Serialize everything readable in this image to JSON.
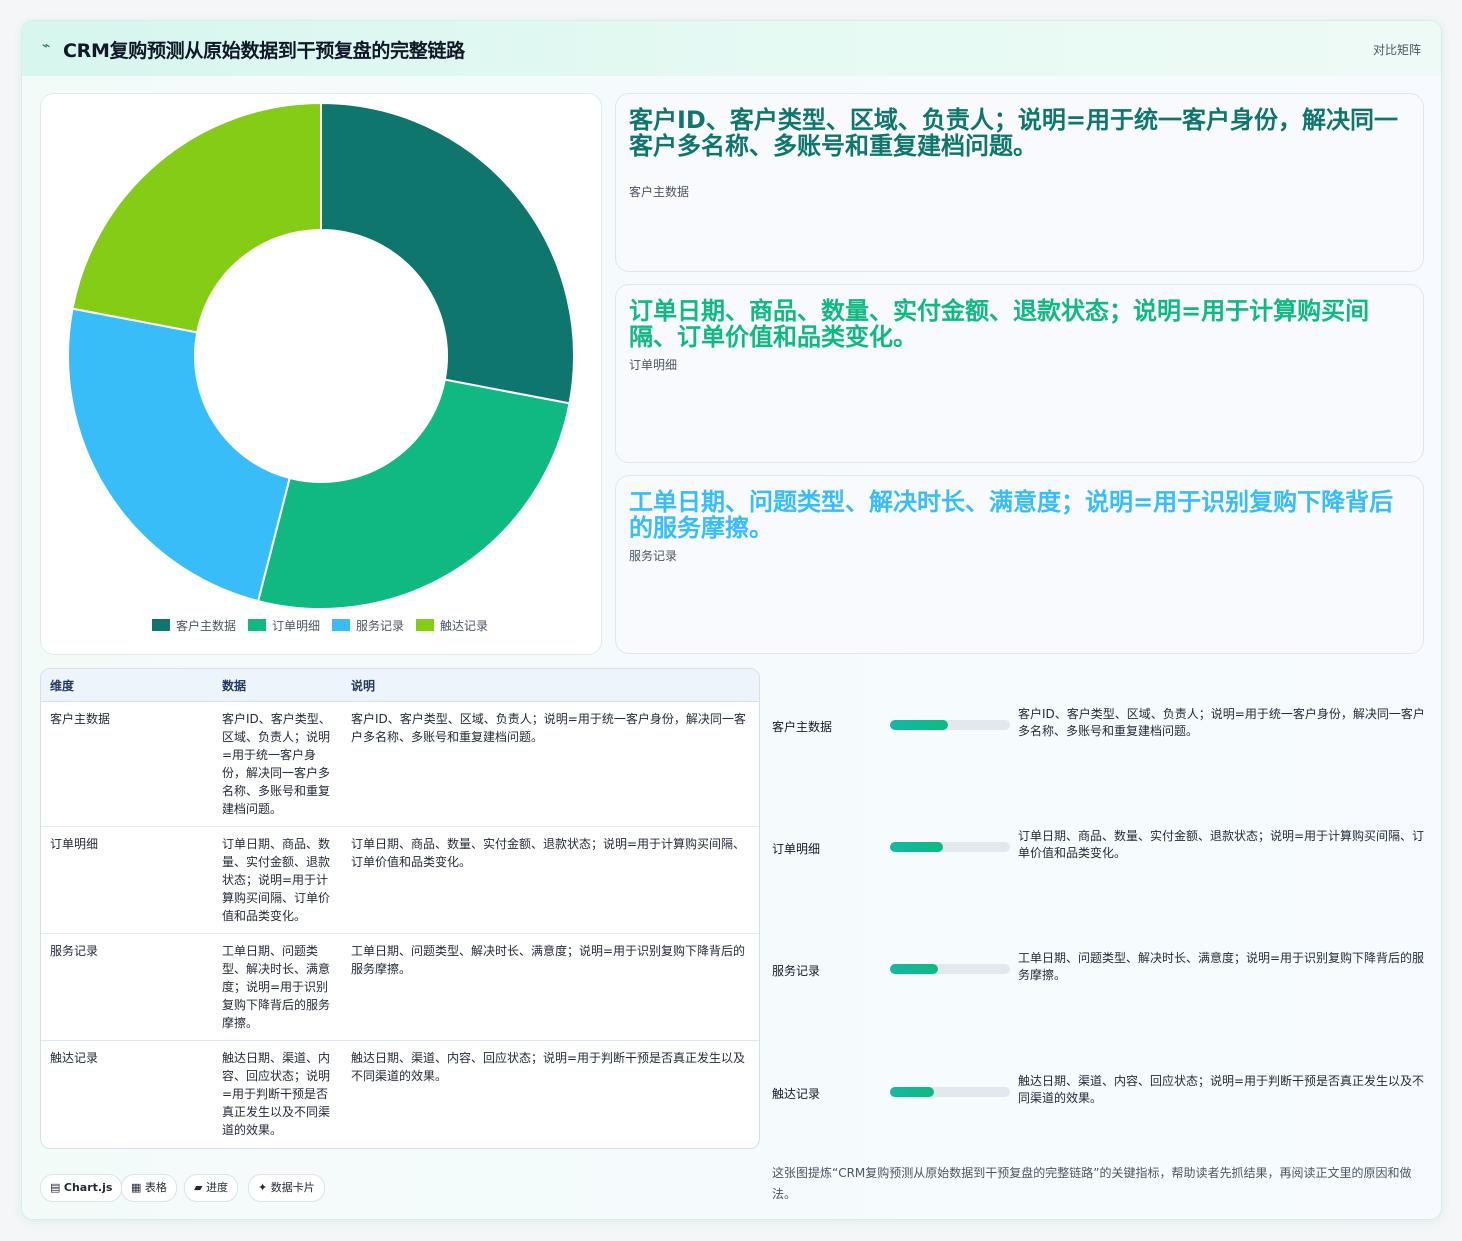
{
  "header": {
    "logo_icon": "⌁",
    "title": "CRM复购预测从原始数据到干预复盘的完整链路",
    "badge": "对比矩阵"
  },
  "colors": {
    "teal_dark": "#0f766e",
    "green": "#10b981",
    "sky": "#38bdf8",
    "lime": "#84cc16"
  },
  "chart_data": {
    "type": "pie",
    "donut": true,
    "categories": [
      "客户主数据",
      "订单明细",
      "服务记录",
      "触达记录"
    ],
    "values": [
      28,
      26,
      24,
      22
    ],
    "colors": [
      "#0f766e",
      "#10b981",
      "#38bdf8",
      "#84cc16"
    ],
    "legend_position": "bottom"
  },
  "cards": [
    {
      "value": "客户ID、客户类型、区域、负责人；说明=用于统一客户身份，解决同一客户多名称、多账号和重复建档问题。",
      "label": "客户主数据",
      "color": "#0f766e"
    },
    {
      "value": "订单日期、商品、数量、实付金额、退款状态；说明=用于计算购买间隔、订单价值和品类变化。",
      "label": "订单明细",
      "color": "#10b981"
    },
    {
      "value": "工单日期、问题类型、解决时长、满意度；说明=用于识别复购下降背后的服务摩擦。",
      "label": "服务记录",
      "color": "#38bdf8"
    }
  ],
  "table": {
    "headers": [
      "维度",
      "数据",
      "说明"
    ],
    "rows": [
      {
        "dim": "客户主数据",
        "data": "客户ID、客户类型、区域、负责人；说明=用于统一客户身份，解决同一客户多名称、多账号和重复建档问题。",
        "desc": "客户ID、客户类型、区域、负责人；说明=用于统一客户身份，解决同一客户多名称、多账号和重复建档问题。"
      },
      {
        "dim": "订单明细",
        "data": "订单日期、商品、数量、实付金额、退款状态；说明=用于计算购买间隔、订单价值和品类变化。",
        "desc": "订单日期、商品、数量、实付金额、退款状态；说明=用于计算购买间隔、订单价值和品类变化。"
      },
      {
        "dim": "服务记录",
        "data": "工单日期、问题类型、解决时长、满意度；说明=用于识别复购下降背后的服务摩擦。",
        "desc": "工单日期、问题类型、解决时长、满意度；说明=用于识别复购下降背后的服务摩擦。"
      },
      {
        "dim": "触达记录",
        "data": "触达日期、渠道、内容、回应状态；说明=用于判断干预是否真正发生以及不同渠道的效果。",
        "desc": "触达日期、渠道、内容、回应状态；说明=用于判断干预是否真正发生以及不同渠道的效果。"
      }
    ]
  },
  "progress": [
    {
      "label": "客户主数据",
      "pct": 48,
      "desc": "客户ID、客户类型、区域、负责人；说明=用于统一客户身份，解决同一客户多名称、多账号和重复建档问题。"
    },
    {
      "label": "订单明细",
      "pct": 44,
      "desc": "订单日期、商品、数量、实付金额、退款状态；说明=用于计算购买间隔、订单价值和品类变化。"
    },
    {
      "label": "服务记录",
      "pct": 40,
      "desc": "工单日期、问题类型、解决时长、满意度；说明=用于识别复购下降背后的服务摩擦。"
    },
    {
      "label": "触达记录",
      "pct": 37,
      "desc": "触达日期、渠道、内容、回应状态；说明=用于判断干预是否真正发生以及不同渠道的效果。"
    }
  ],
  "chips": [
    {
      "icon": "chart-icon",
      "glyph": "▤",
      "label": "Chart.js"
    },
    {
      "icon": "table-icon",
      "glyph": "▦",
      "label": "表格"
    },
    {
      "icon": "progress-icon",
      "glyph": "▰",
      "label": "进度"
    },
    {
      "icon": "sparkle-icon",
      "glyph": "✦",
      "label": "数据卡片"
    }
  ],
  "note": "这张图提炼“CRM复购预测从原始数据到干预复盘的完整链路”的关键指标，帮助读者先抓结果，再阅读正文里的原因和做法。"
}
